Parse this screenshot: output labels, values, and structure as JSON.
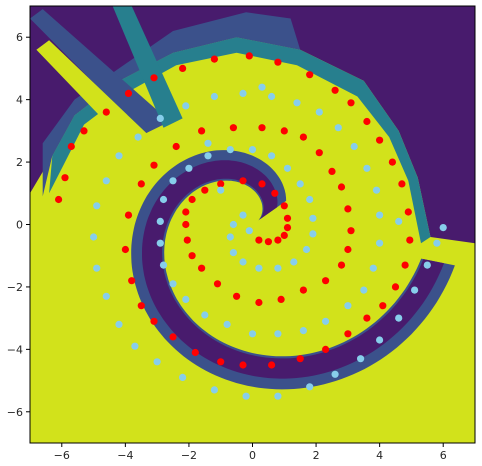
{
  "chart_data": {
    "type": "scatter",
    "title": "",
    "xlabel": "",
    "ylabel": "",
    "xlim": [
      -7,
      7
    ],
    "ylim": [
      -7,
      7
    ],
    "grid": false,
    "legend": "none",
    "background": "contour-filled decision regions (viridis)",
    "region_colors": {
      "high": "#d2e21b",
      "mid_high": "#2ab07f",
      "mid": "#277f8e",
      "mid_low": "#3b518b",
      "low": "#481b6d"
    },
    "x_ticks": [
      -6,
      -4,
      -2,
      0,
      2,
      4,
      6
    ],
    "y_ticks": [
      -6,
      -4,
      -2,
      0,
      2,
      4,
      6
    ],
    "x_tick_labels": [
      "−6",
      "−4",
      "−2",
      "0",
      "2",
      "4",
      "6"
    ],
    "y_tick_labels": [
      "−6",
      "−4",
      "−2",
      "0",
      "2",
      "4",
      "6"
    ],
    "series": [
      {
        "color": "#ff0000",
        "points": [
          [
            0.2,
            -0.5
          ],
          [
            0.5,
            -0.55
          ],
          [
            0.8,
            -0.5
          ],
          [
            1.0,
            -0.35
          ],
          [
            1.1,
            -0.1
          ],
          [
            1.1,
            0.2
          ],
          [
            1.0,
            0.6
          ],
          [
            0.7,
            1.0
          ],
          [
            0.3,
            1.3
          ],
          [
            -0.3,
            1.4
          ],
          [
            -1.0,
            1.3
          ],
          [
            -1.5,
            1.1
          ],
          [
            -1.9,
            0.8
          ],
          [
            -2.1,
            0.4
          ],
          [
            -2.1,
            0.0
          ],
          [
            -2.05,
            -0.5
          ],
          [
            -1.9,
            -1.0
          ],
          [
            -1.6,
            -1.4
          ],
          [
            -1.1,
            -1.9
          ],
          [
            -0.5,
            -2.3
          ],
          [
            0.2,
            -2.5
          ],
          [
            0.9,
            -2.4
          ],
          [
            1.6,
            -2.1
          ],
          [
            2.3,
            -1.8
          ],
          [
            2.8,
            -1.3
          ],
          [
            3.0,
            -0.8
          ],
          [
            3.1,
            -0.2
          ],
          [
            3.0,
            0.5
          ],
          [
            2.8,
            1.2
          ],
          [
            2.5,
            1.7
          ],
          [
            2.1,
            2.3
          ],
          [
            1.6,
            2.8
          ],
          [
            1.0,
            3.0
          ],
          [
            0.3,
            3.1
          ],
          [
            -0.6,
            3.1
          ],
          [
            -1.6,
            3.0
          ],
          [
            -2.4,
            2.5
          ],
          [
            -3.1,
            1.9
          ],
          [
            -3.5,
            1.3
          ],
          [
            -3.9,
            0.3
          ],
          [
            -4.0,
            -0.8
          ],
          [
            -3.8,
            -1.8
          ],
          [
            -3.5,
            -2.6
          ],
          [
            -3.1,
            -3.1
          ],
          [
            -2.5,
            -3.6
          ],
          [
            -1.8,
            -4.1
          ],
          [
            -1.0,
            -4.4
          ],
          [
            -0.3,
            -4.5
          ],
          [
            0.6,
            -4.5
          ],
          [
            1.5,
            -4.3
          ],
          [
            2.3,
            -4.0
          ],
          [
            3.0,
            -3.5
          ],
          [
            3.6,
            -3.0
          ],
          [
            4.1,
            -2.6
          ],
          [
            4.5,
            -2.0
          ],
          [
            4.8,
            -1.3
          ],
          [
            4.95,
            -0.5
          ],
          [
            4.9,
            0.4
          ],
          [
            4.7,
            1.3
          ],
          [
            4.4,
            2.0
          ],
          [
            4.0,
            2.7
          ],
          [
            3.6,
            3.3
          ],
          [
            3.1,
            3.9
          ],
          [
            2.6,
            4.3
          ],
          [
            1.8,
            4.8
          ],
          [
            0.8,
            5.2
          ],
          [
            -0.1,
            5.4
          ],
          [
            -1.2,
            5.3
          ],
          [
            -2.2,
            5.0
          ],
          [
            -3.1,
            4.7
          ],
          [
            -3.9,
            4.2
          ],
          [
            -4.6,
            3.6
          ],
          [
            -5.3,
            3.0
          ],
          [
            -5.7,
            2.5
          ],
          [
            -5.9,
            1.5
          ],
          [
            -6.1,
            0.8
          ]
        ]
      },
      {
        "color": "#87ceeb",
        "points": [
          [
            -0.3,
            0.3
          ],
          [
            -0.6,
            0.0
          ],
          [
            -0.7,
            -0.4
          ],
          [
            -0.6,
            -0.9
          ],
          [
            -0.3,
            -1.2
          ],
          [
            0.2,
            -1.4
          ],
          [
            0.8,
            -1.4
          ],
          [
            1.3,
            -1.2
          ],
          [
            1.7,
            -0.8
          ],
          [
            1.9,
            -0.3
          ],
          [
            1.9,
            0.2
          ],
          [
            1.8,
            0.8
          ],
          [
            1.5,
            1.3
          ],
          [
            1.1,
            1.8
          ],
          [
            0.6,
            2.2
          ],
          [
            0.0,
            2.4
          ],
          [
            -0.7,
            2.4
          ],
          [
            -1.4,
            2.2
          ],
          [
            -2.0,
            1.8
          ],
          [
            -2.5,
            1.4
          ],
          [
            -2.8,
            0.8
          ],
          [
            -2.9,
            0.1
          ],
          [
            -2.9,
            -0.6
          ],
          [
            -2.8,
            -1.3
          ],
          [
            -2.5,
            -1.9
          ],
          [
            -2.1,
            -2.4
          ],
          [
            -1.5,
            -2.9
          ],
          [
            -0.8,
            -3.2
          ],
          [
            0.0,
            -3.5
          ],
          [
            0.8,
            -3.5
          ],
          [
            1.6,
            -3.4
          ],
          [
            2.3,
            -3.1
          ],
          [
            3.0,
            -2.6
          ],
          [
            3.5,
            -2.1
          ],
          [
            3.8,
            -1.4
          ],
          [
            4.0,
            -0.6
          ],
          [
            4.0,
            0.3
          ],
          [
            3.9,
            1.1
          ],
          [
            3.6,
            1.8
          ],
          [
            3.2,
            2.5
          ],
          [
            2.7,
            3.1
          ],
          [
            2.1,
            3.6
          ],
          [
            1.4,
            3.9
          ],
          [
            0.6,
            4.1
          ],
          [
            -0.3,
            4.2
          ],
          [
            -1.2,
            4.1
          ],
          [
            -2.1,
            3.8
          ],
          [
            -2.9,
            3.4
          ],
          [
            -3.6,
            2.8
          ],
          [
            -4.2,
            2.2
          ],
          [
            -4.6,
            1.4
          ],
          [
            -4.9,
            0.6
          ],
          [
            -5.0,
            -0.4
          ],
          [
            -4.9,
            -1.4
          ],
          [
            -4.6,
            -2.3
          ],
          [
            -4.2,
            -3.2
          ],
          [
            -3.7,
            -3.9
          ],
          [
            -3.0,
            -4.4
          ],
          [
            -2.2,
            -4.9
          ],
          [
            -1.2,
            -5.3
          ],
          [
            -0.2,
            -5.5
          ],
          [
            0.8,
            -5.5
          ],
          [
            1.8,
            -5.2
          ],
          [
            2.6,
            -4.8
          ],
          [
            3.4,
            -4.3
          ],
          [
            4.0,
            -3.7
          ],
          [
            4.6,
            -3.0
          ],
          [
            5.1,
            -2.1
          ],
          [
            5.5,
            -1.3
          ],
          [
            5.8,
            -0.6
          ],
          [
            6.0,
            -0.1
          ],
          [
            4.6,
            0.1
          ],
          [
            0.3,
            4.4
          ],
          [
            -1.4,
            2.6
          ],
          [
            -1.0,
            1.1
          ],
          [
            -0.1,
            -0.2
          ]
        ]
      }
    ]
  }
}
